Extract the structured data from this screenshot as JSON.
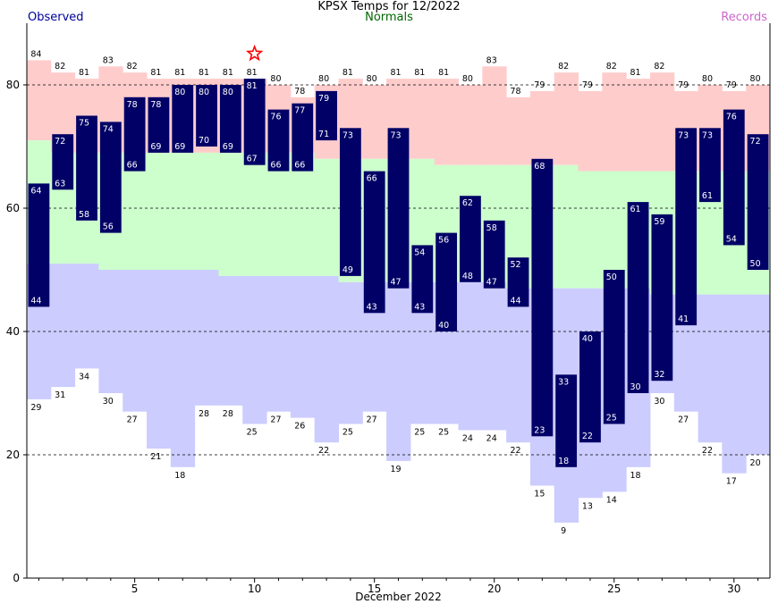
{
  "header": {
    "title": "KPSX Temps for 12/2022",
    "observed_label": "Observed",
    "normals_label": "Normals",
    "records_label": "Records"
  },
  "colors": {
    "observed": "#000066",
    "observed_text": "#000099",
    "normals_text": "#006600",
    "records_text": "#cc66cc",
    "record_high_band": "#ffcccc",
    "normal_band": "#ccffcc",
    "record_low_band": "#ccccff",
    "star": "#ff0000"
  },
  "chart_data": {
    "type": "bar",
    "title": "KPSX Temps for 12/2022",
    "xlabel": "December 2022",
    "ylabel": "",
    "x_ticks": [
      5,
      10,
      15,
      20,
      25,
      30
    ],
    "y_ticks": [
      0,
      20,
      40,
      60,
      80
    ],
    "ylim": [
      0,
      90
    ],
    "xlim": [
      0.5,
      31.5
    ],
    "grid": "dashed horizontal at 20, 40, 60, 80",
    "days": [
      1,
      2,
      3,
      4,
      5,
      6,
      7,
      8,
      9,
      10,
      11,
      12,
      13,
      14,
      15,
      16,
      17,
      18,
      19,
      20,
      21,
      22,
      23,
      24,
      25,
      26,
      27,
      28,
      29,
      30,
      31
    ],
    "observed_high": [
      64,
      72,
      75,
      74,
      78,
      78,
      80,
      80,
      80,
      81,
      76,
      77,
      79,
      73,
      66,
      73,
      54,
      56,
      62,
      58,
      52,
      68,
      33,
      40,
      50,
      61,
      59,
      73,
      73,
      76,
      72
    ],
    "observed_low": [
      44,
      63,
      58,
      56,
      66,
      69,
      69,
      70,
      69,
      67,
      66,
      66,
      71,
      49,
      43,
      47,
      43,
      40,
      48,
      47,
      44,
      23,
      18,
      22,
      25,
      30,
      32,
      41,
      61,
      54,
      50
    ],
    "normal_high": [
      71,
      69,
      69,
      69,
      69,
      69,
      69,
      69,
      69,
      69,
      69,
      69,
      68,
      68,
      68,
      68,
      68,
      67,
      67,
      67,
      67,
      67,
      67,
      66,
      66,
      66,
      66,
      66,
      66,
      66,
      66
    ],
    "normal_low": [
      51,
      51,
      51,
      50,
      50,
      50,
      50,
      50,
      49,
      49,
      49,
      49,
      49,
      48,
      48,
      48,
      48,
      48,
      48,
      48,
      47,
      47,
      47,
      47,
      47,
      47,
      46,
      46,
      46,
      46,
      46
    ],
    "record_high": [
      84,
      82,
      81,
      83,
      82,
      81,
      81,
      81,
      81,
      81,
      80,
      78,
      80,
      81,
      80,
      81,
      81,
      81,
      80,
      83,
      78,
      79,
      82,
      79,
      82,
      81,
      82,
      79,
      80,
      79,
      80
    ],
    "record_low": [
      29,
      31,
      34,
      30,
      27,
      21,
      18,
      28,
      28,
      25,
      27,
      26,
      22,
      25,
      27,
      19,
      25,
      25,
      24,
      24,
      22,
      15,
      9,
      13,
      14,
      18,
      30,
      27,
      22,
      17,
      20
    ],
    "record_set_days": [
      10
    ],
    "record_set_marker": "star-icon"
  }
}
